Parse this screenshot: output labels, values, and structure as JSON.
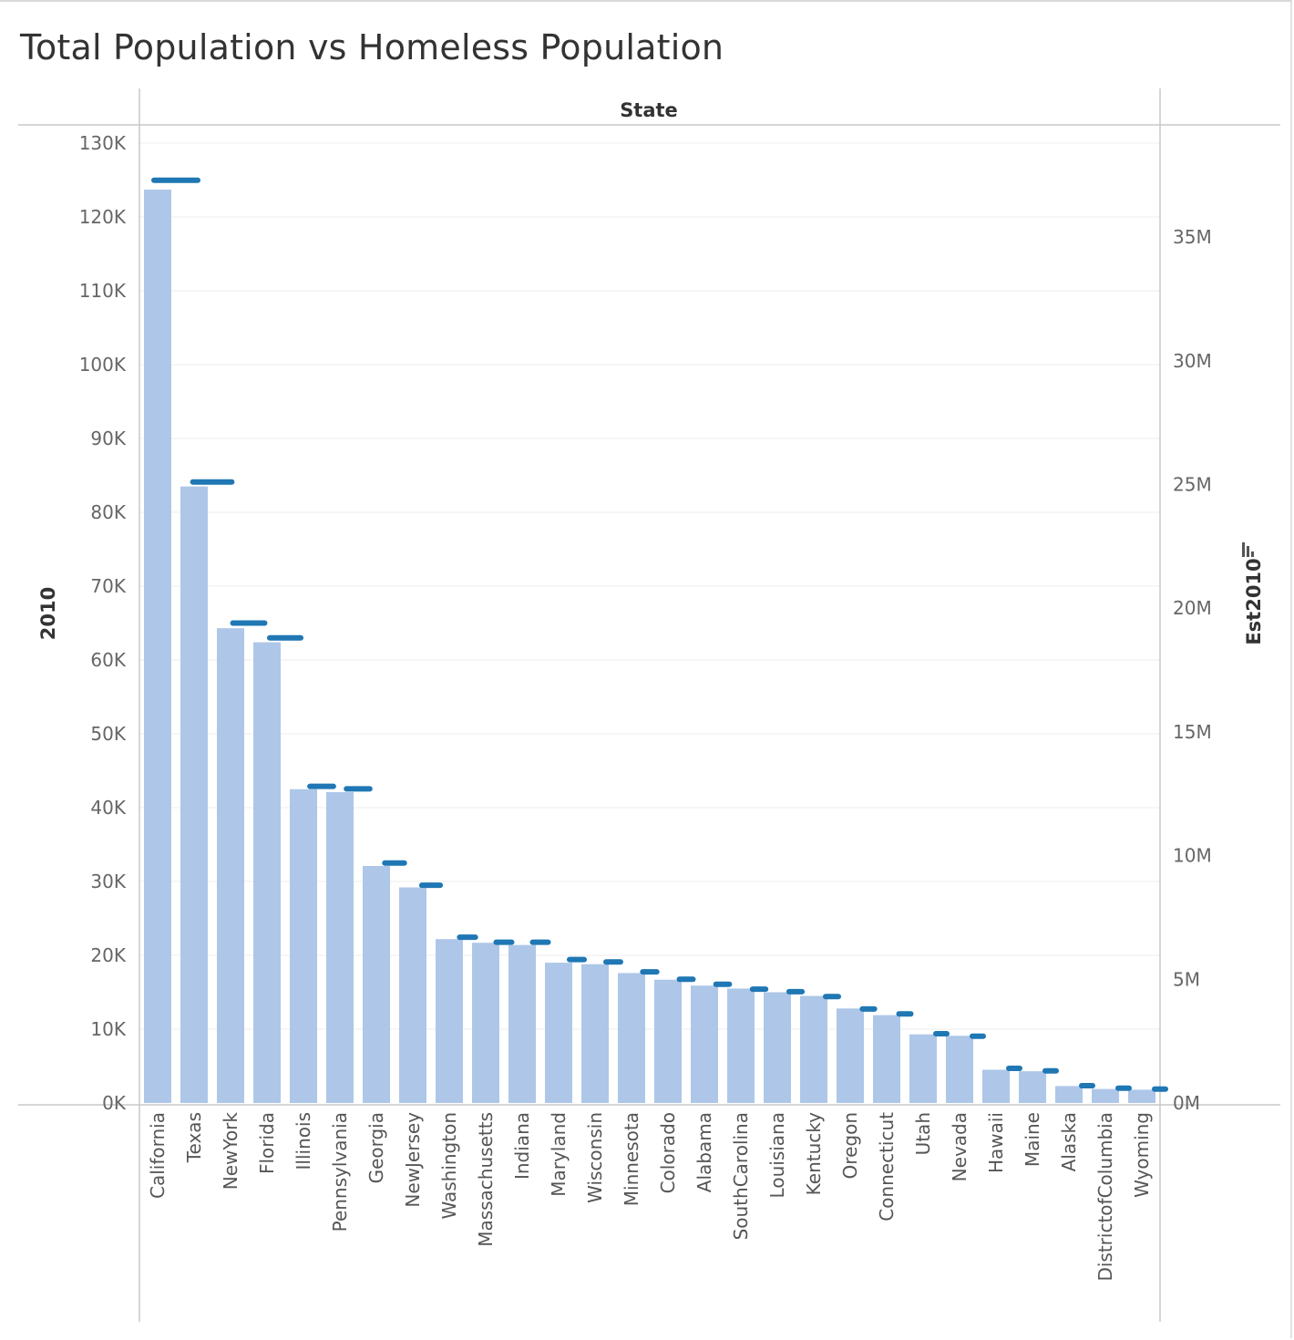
{
  "chart_data": {
    "type": "bar",
    "title": "Total Population vs Homeless Population",
    "column_header": "State",
    "left_axis_title": "2010",
    "right_axis_title": "Est2010",
    "left_ylim": [
      0,
      130000
    ],
    "right_ylim": [
      0,
      38800000
    ],
    "left_ticks": [
      {
        "value": 0,
        "label": "0K"
      },
      {
        "value": 10000,
        "label": "10K"
      },
      {
        "value": 20000,
        "label": "20K"
      },
      {
        "value": 30000,
        "label": "30K"
      },
      {
        "value": 40000,
        "label": "40K"
      },
      {
        "value": 50000,
        "label": "50K"
      },
      {
        "value": 60000,
        "label": "60K"
      },
      {
        "value": 70000,
        "label": "70K"
      },
      {
        "value": 80000,
        "label": "80K"
      },
      {
        "value": 90000,
        "label": "90K"
      },
      {
        "value": 100000,
        "label": "100K"
      },
      {
        "value": 110000,
        "label": "110K"
      },
      {
        "value": 120000,
        "label": "120K"
      },
      {
        "value": 130000,
        "label": "130K"
      }
    ],
    "right_ticks": [
      {
        "value": 0,
        "label": "0M"
      },
      {
        "value": 5000000,
        "label": "5M"
      },
      {
        "value": 10000000,
        "label": "10M"
      },
      {
        "value": 15000000,
        "label": "15M"
      },
      {
        "value": 20000000,
        "label": "20M"
      },
      {
        "value": 25000000,
        "label": "25M"
      },
      {
        "value": 30000000,
        "label": "30M"
      },
      {
        "value": 35000000,
        "label": "35M"
      }
    ],
    "categories": [
      "California",
      "Texas",
      "NewYork",
      "Florida",
      "Illinois",
      "Pennsylvania",
      "Georgia",
      "NewJersey",
      "Washington",
      "Massachusetts",
      "Indiana",
      "Maryland",
      "Wisconsin",
      "Minnesota",
      "Colorado",
      "Alabama",
      "SouthCarolina",
      "Louisiana",
      "Kentucky",
      "Oregon",
      "Connecticut",
      "Utah",
      "Nevada",
      "Hawaii",
      "Maine",
      "Alaska",
      "DistrictofColumbia",
      "Wyoming"
    ],
    "series": [
      {
        "name": "2010",
        "axis": "left",
        "mark": "bar",
        "color": "#aec7e8",
        "values": [
          123700,
          83500,
          64300,
          62400,
          42500,
          42100,
          32100,
          29200,
          22200,
          21700,
          21400,
          19000,
          18800,
          17600,
          16700,
          15900,
          15500,
          15000,
          14500,
          12800,
          11900,
          9300,
          9100,
          4500,
          4300,
          2300,
          1900,
          1800
        ]
      },
      {
        "name": "Est2010",
        "axis": "right",
        "mark": "dash",
        "color": "#1f77b4",
        "values": [
          37300000,
          25100000,
          19400000,
          18800000,
          12800000,
          12700000,
          9700000,
          8800000,
          6700000,
          6500000,
          6500000,
          5800000,
          5700000,
          5300000,
          5000000,
          4800000,
          4600000,
          4500000,
          4300000,
          3800000,
          3600000,
          2800000,
          2700000,
          1400000,
          1300000,
          700000,
          600000,
          560000
        ]
      }
    ]
  }
}
